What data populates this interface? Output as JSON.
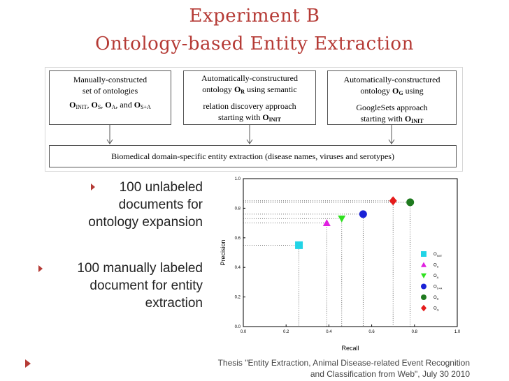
{
  "title": {
    "line1": "Experiment B",
    "line2": "Ontology-based Entity Extraction"
  },
  "diagram": {
    "box1": {
      "line1": "Manually-constructed",
      "line2": "set of ontologies"
    },
    "box2": {
      "line1": "Automatically-constructured",
      "line2a": "ontology ",
      "line2b": " using semantic",
      "line3": "relation discovery approach",
      "line4": "starting with "
    },
    "box3": {
      "line1": "Automatically-constructured",
      "line2a": "ontology ",
      "line2b": " using",
      "line3": "GoogleSets approach",
      "line4": "starting with "
    },
    "box4": {
      "text": "Biomedical domain-specific entity extraction (disease names, viruses and serotypes)"
    },
    "sym": {
      "O": "O",
      "INIT": "INIT",
      "S": "S",
      "A": "A",
      "SA": "S+A",
      "R": "R",
      "G": "G",
      "sep": ", ",
      "and": ", and "
    }
  },
  "bullets": {
    "b1": {
      "l1": "100 unlabeled",
      "l2": "documents for",
      "l3": "ontology expansion"
    },
    "b2": {
      "l1": "100 manually labeled",
      "l2": "document for entity",
      "l3": "extraction"
    }
  },
  "footer": {
    "line1": "Thesis \"Entity Extraction, Animal Disease-related Event Recognition",
    "line2": "and Classification from Web\", July 30 2010"
  },
  "chart_data": {
    "type": "scatter",
    "xlabel": "Recall",
    "ylabel": "Precision",
    "xlim": [
      0.0,
      1.0
    ],
    "ylim": [
      0.0,
      1.0
    ],
    "xticks": [
      "0.0",
      "0.2",
      "0.4",
      "0.6",
      "0.8",
      "1.0"
    ],
    "yticks": [
      "0.0",
      "0.2",
      "0.4",
      "0.6",
      "0.8",
      "1.0"
    ],
    "grid": "dotted guide lines to each point",
    "legend_position": "right",
    "series": [
      {
        "name": "O",
        "sub": "INIT",
        "x": 0.26,
        "y": 0.55,
        "marker": "square",
        "color": "#22d4e6"
      },
      {
        "name": "O",
        "sub": "S",
        "x": 0.39,
        "y": 0.7,
        "marker": "triangle-up",
        "color": "#e020e0"
      },
      {
        "name": "O",
        "sub": "A",
        "x": 0.46,
        "y": 0.73,
        "marker": "triangle-down",
        "color": "#30e020"
      },
      {
        "name": "O",
        "sub": "S+A",
        "x": 0.56,
        "y": 0.76,
        "marker": "circle",
        "color": "#1a22d6"
      },
      {
        "name": "O",
        "sub": "R",
        "x": 0.78,
        "y": 0.84,
        "marker": "circle",
        "color": "#1f7a1f"
      },
      {
        "name": "O",
        "sub": "G",
        "x": 0.7,
        "y": 0.85,
        "marker": "diamond",
        "color": "#e51c1c"
      }
    ]
  }
}
